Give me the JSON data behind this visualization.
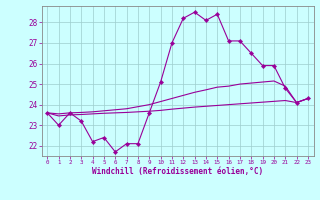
{
  "xlabel": "Windchill (Refroidissement éolien,°C)",
  "x": [
    0,
    1,
    2,
    3,
    4,
    5,
    6,
    7,
    8,
    9,
    10,
    11,
    12,
    13,
    14,
    15,
    16,
    17,
    18,
    19,
    20,
    21,
    22,
    23
  ],
  "y_main": [
    23.6,
    23.0,
    23.6,
    23.2,
    22.2,
    22.4,
    21.7,
    22.1,
    22.1,
    23.6,
    25.1,
    27.0,
    28.2,
    28.5,
    28.1,
    28.4,
    27.1,
    27.1,
    26.5,
    25.9,
    25.9,
    24.8,
    24.1,
    24.3
  ],
  "y_upper": [
    23.6,
    23.55,
    23.6,
    23.62,
    23.65,
    23.7,
    23.75,
    23.8,
    23.9,
    24.0,
    24.15,
    24.3,
    24.45,
    24.6,
    24.72,
    24.85,
    24.9,
    25.0,
    25.05,
    25.1,
    25.15,
    24.9,
    24.1,
    24.3
  ],
  "y_lower": [
    23.6,
    23.45,
    23.5,
    23.52,
    23.55,
    23.58,
    23.6,
    23.62,
    23.65,
    23.68,
    23.72,
    23.78,
    23.83,
    23.88,
    23.92,
    23.96,
    24.0,
    24.04,
    24.08,
    24.12,
    24.16,
    24.2,
    24.1,
    24.3
  ],
  "line_color": "#990099",
  "bg_color": "#ccffff",
  "grid_color": "#9ecece",
  "xlim": [
    -0.5,
    23.5
  ],
  "ylim": [
    21.5,
    28.8
  ],
  "yticks": [
    22,
    23,
    24,
    25,
    26,
    27,
    28
  ],
  "xticks": [
    0,
    1,
    2,
    3,
    4,
    5,
    6,
    7,
    8,
    9,
    10,
    11,
    12,
    13,
    14,
    15,
    16,
    17,
    18,
    19,
    20,
    21,
    22,
    23
  ]
}
